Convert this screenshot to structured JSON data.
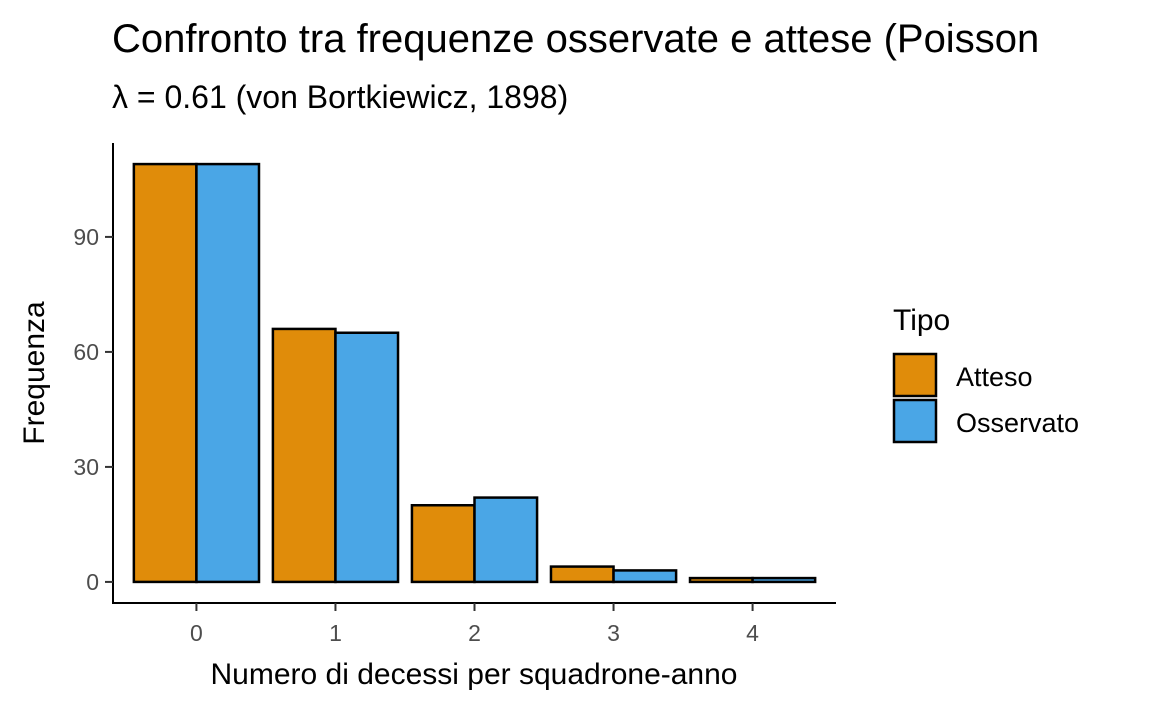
{
  "chart_data": {
    "type": "bar",
    "title": "Confronto tra frequenze osservate e attese (Poisson",
    "subtitle": "λ = 0.61 (von Bortkiewicz, 1898)",
    "xlabel": "Numero di decessi per squadrone-anno",
    "ylabel": "Frequenza",
    "categories": [
      "0",
      "1",
      "2",
      "3",
      "4"
    ],
    "series": [
      {
        "name": "Atteso",
        "color": "#E08C0A",
        "values": [
          109,
          66,
          20,
          4,
          1
        ]
      },
      {
        "name": "Osservato",
        "color": "#4AA6E6",
        "values": [
          109,
          65,
          22,
          3,
          1
        ]
      }
    ],
    "yticks": [
      0,
      30,
      60,
      90
    ],
    "ylim": [
      -5.5,
      114.5
    ],
    "grid": false,
    "legend": {
      "title": "Tipo",
      "position": "right"
    },
    "bar_outline_color": "#000000"
  }
}
